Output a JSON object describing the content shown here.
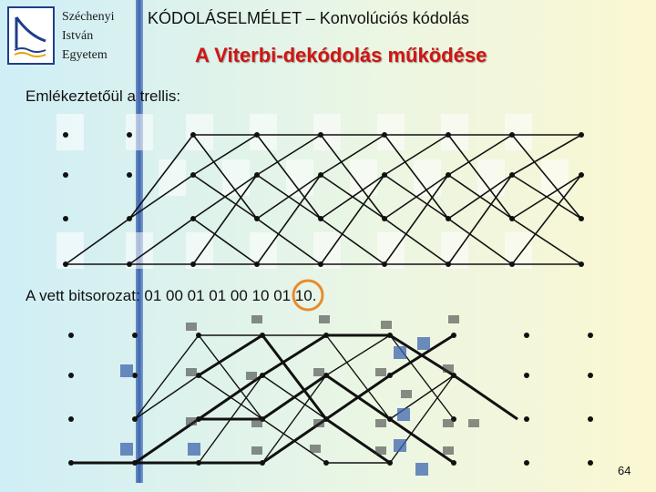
{
  "header": {
    "university_lines": [
      "Széchenyi",
      "István",
      "Egyetem"
    ],
    "title": "KÓDOLÁSELMÉLET – Konvolúciós kódolás",
    "subtitle": "A Viterbi-dekódolás működése"
  },
  "body": {
    "intro": "Emlékeztetőül a trellis:",
    "received_bits": "A vett bitsorozat: 01 00 01 01 00 10 01 10."
  },
  "footer": {
    "page_number": "64"
  },
  "colors": {
    "title_red": "#d21414",
    "highlight_ring": "#e88b2e",
    "accent_blue": "#3e66ad"
  },
  "icons": [
    "university-logo-icon"
  ]
}
